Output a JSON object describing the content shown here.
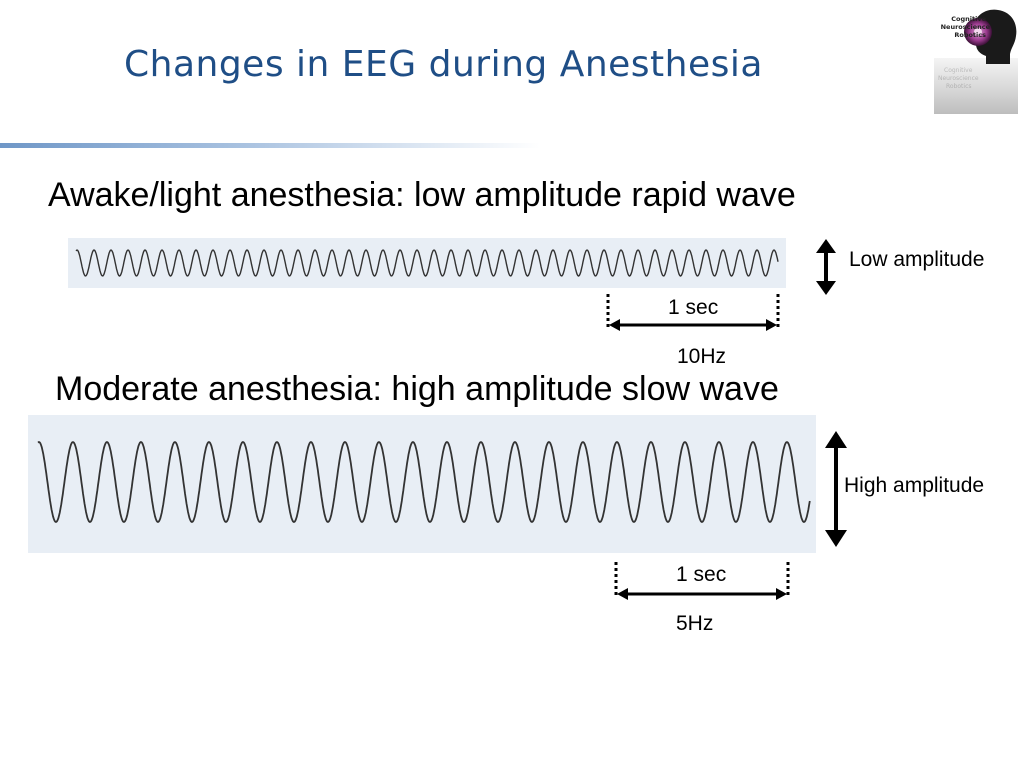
{
  "slide": {
    "title": "Changes in EEG during Anesthesia",
    "logo_text": [
      "Cognitive",
      "Neuroscience",
      "Robotics"
    ]
  },
  "sections": [
    {
      "heading": "Awake/light anesthesia: low amplitude rapid wave",
      "amplitude_label": "Low amplitude",
      "duration_label": "1 sec",
      "frequency_label": "10Hz",
      "frequency_hz": 10
    },
    {
      "heading": "Moderate anesthesia: high amplitude slow wave",
      "amplitude_label": "High amplitude",
      "duration_label": "1 sec",
      "frequency_label": "5Hz",
      "frequency_hz": 5
    }
  ],
  "colors": {
    "title": "#1f4e86",
    "wave_panel": "#e8eef5",
    "wave_line": "#333333"
  }
}
